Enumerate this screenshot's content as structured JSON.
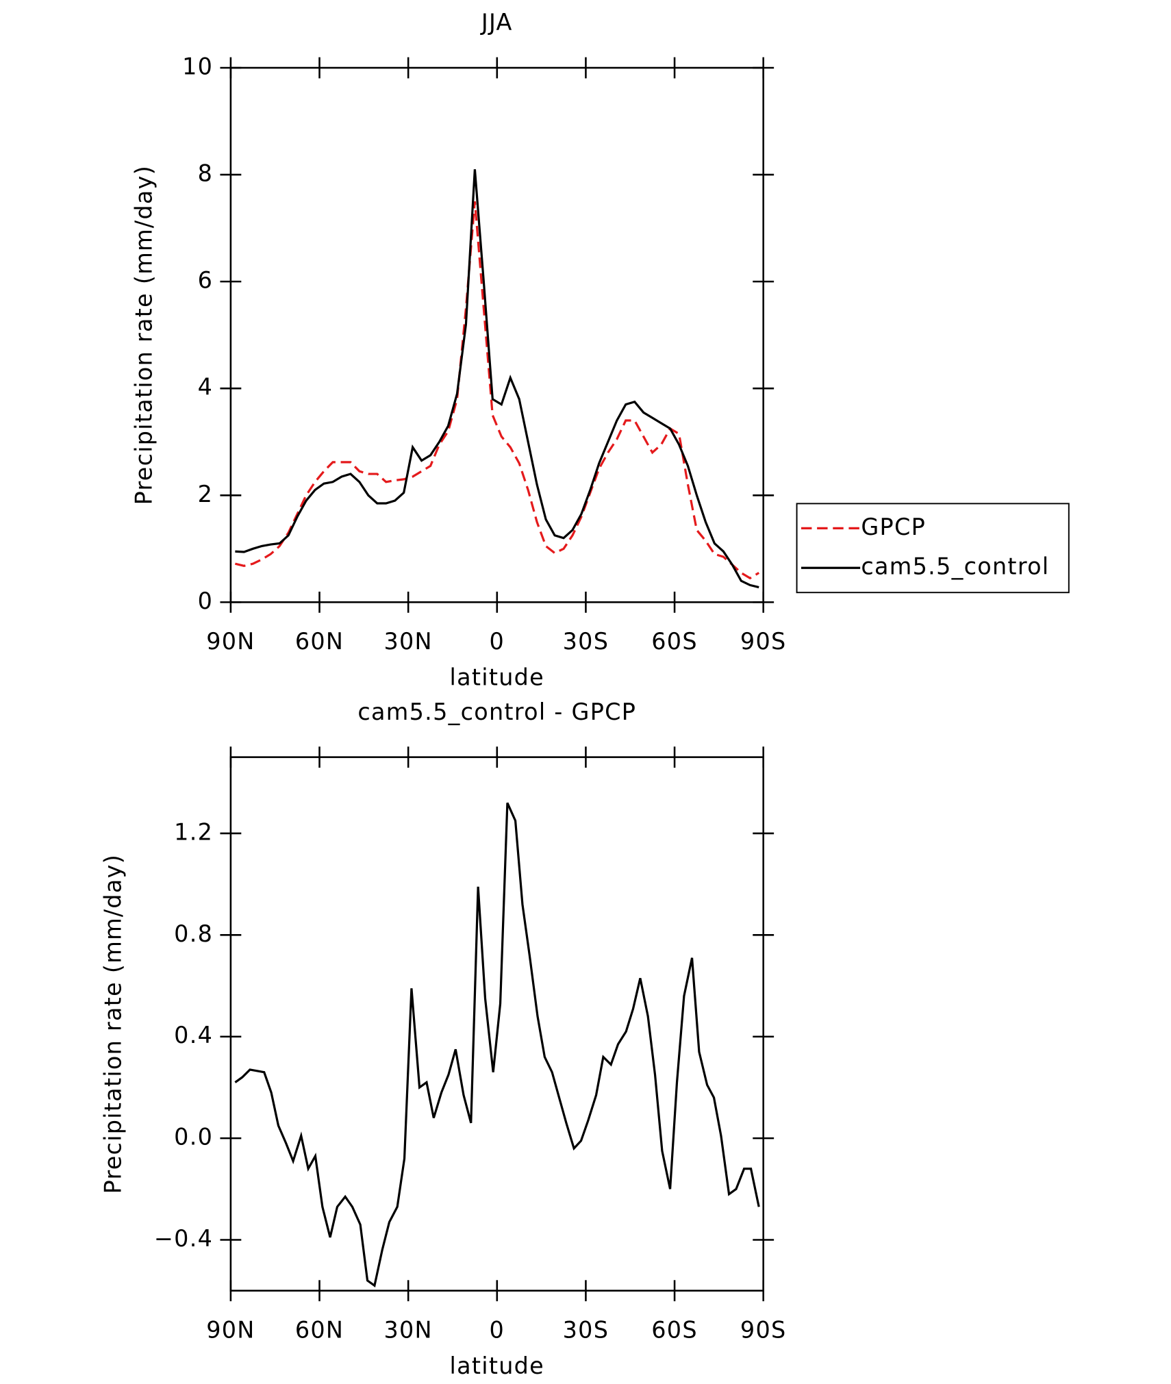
{
  "chart_data": [
    {
      "type": "line",
      "title": "JJA",
      "xlabel": "latitude",
      "ylabel": "Precipitation rate (mm/day)",
      "xlim": [
        90,
        -90
      ],
      "xticks": [
        {
          "value": 90,
          "label": "90N"
        },
        {
          "value": 60,
          "label": "60N"
        },
        {
          "value": 30,
          "label": "30N"
        },
        0,
        {
          "value": -30,
          "label": "30S"
        },
        {
          "value": -60,
          "label": "60S"
        },
        {
          "value": -90,
          "label": "90S"
        }
      ],
      "ylim": [
        0,
        10
      ],
      "yticks": [
        0,
        2,
        4,
        6,
        8,
        10
      ],
      "legend": "right",
      "x": [
        88.5,
        85.5,
        82.5,
        79.5,
        76.5,
        73.5,
        70.5,
        67.5,
        64.5,
        61.5,
        58.5,
        55.5,
        52.5,
        49.5,
        46.5,
        43.5,
        40.5,
        37.5,
        34.5,
        31.5,
        28.5,
        25.5,
        22.5,
        19.5,
        16.5,
        13.5,
        10.5,
        7.5,
        4.5,
        1.5,
        -1.5,
        -4.5,
        -7.5,
        -10.5,
        -13.5,
        -16.5,
        -19.5,
        -22.5,
        -25.5,
        -28.5,
        -31.5,
        -34.5,
        -37.5,
        -40.5,
        -43.5,
        -46.5,
        -49.5,
        -52.5,
        -55.5,
        -58.5,
        -61.5,
        -64.5,
        -67.5,
        -70.5,
        -73.5,
        -76.5,
        -79.5,
        -82.5,
        -85.5,
        -88.5
      ],
      "series": [
        {
          "name": "GPCP",
          "color": "#e41a1c",
          "line_style": "dashed",
          "values": [
            0.72,
            0.68,
            0.72,
            0.8,
            0.9,
            1.05,
            1.3,
            1.65,
            2.0,
            2.25,
            2.45,
            2.62,
            2.62,
            2.62,
            2.45,
            2.4,
            2.4,
            2.25,
            2.28,
            2.3,
            2.35,
            2.45,
            2.55,
            2.95,
            3.2,
            3.8,
            5.5,
            7.5,
            5.5,
            3.5,
            3.1,
            2.9,
            2.6,
            2.1,
            1.5,
            1.05,
            0.92,
            1.0,
            1.25,
            1.6,
            2.05,
            2.5,
            2.8,
            3.05,
            3.4,
            3.4,
            3.1,
            2.8,
            2.95,
            3.25,
            3.15,
            2.2,
            1.35,
            1.15,
            0.9,
            0.85,
            0.7,
            0.55,
            0.45,
            0.55
          ]
        },
        {
          "name": "cam5.5_control",
          "color": "#000000",
          "line_style": "solid",
          "values": [
            0.95,
            0.94,
            1.0,
            1.05,
            1.08,
            1.1,
            1.25,
            1.6,
            1.9,
            2.1,
            2.22,
            2.25,
            2.35,
            2.4,
            2.25,
            2.0,
            1.85,
            1.85,
            1.9,
            2.05,
            2.9,
            2.65,
            2.75,
            3.0,
            3.3,
            3.9,
            5.2,
            8.1,
            6.0,
            3.8,
            3.7,
            4.2,
            3.8,
            3.0,
            2.2,
            1.55,
            1.25,
            1.2,
            1.35,
            1.65,
            2.1,
            2.6,
            3.0,
            3.4,
            3.7,
            3.75,
            3.55,
            3.45,
            3.35,
            3.25,
            2.95,
            2.55,
            2.0,
            1.5,
            1.1,
            0.95,
            0.7,
            0.4,
            0.32,
            0.28
          ]
        }
      ]
    },
    {
      "type": "line",
      "title": "cam5.5_control - GPCP",
      "xlabel": "latitude",
      "ylabel": "Precipitation rate (mm/day)",
      "xlim": [
        90,
        -90
      ],
      "xticks": [
        {
          "value": 90,
          "label": "90N"
        },
        {
          "value": 60,
          "label": "60N"
        },
        {
          "value": 30,
          "label": "30N"
        },
        0,
        {
          "value": -30,
          "label": "30S"
        },
        {
          "value": -60,
          "label": "60S"
        },
        {
          "value": -90,
          "label": "90S"
        }
      ],
      "ylim": [
        -0.6,
        1.5
      ],
      "yticks": [
        {
          "value": -0.4,
          "label": "−0.4"
        },
        {
          "value": 0,
          "label": "0.0"
        },
        0.4,
        0.8,
        1.2
      ],
      "x": [
        88.5,
        86.1,
        83.5,
        78.7,
        76.3,
        73.9,
        71.3,
        68.9,
        66.2,
        63.8,
        61.4,
        59.0,
        56.4,
        54.0,
        51.3,
        48.9,
        46.2,
        43.8,
        41.4,
        38.8,
        36.4,
        33.7,
        31.3,
        28.9,
        26.2,
        23.8,
        21.4,
        18.8,
        16.4,
        14.0,
        11.3,
        8.8,
        6.4,
        4.0,
        1.3,
        -1.1,
        -3.5,
        -6.2,
        -8.6,
        -11.0,
        -13.7,
        -16.1,
        -18.6,
        -21.0,
        -23.4,
        -26.0,
        -28.4,
        -30.8,
        -33.5,
        -35.9,
        -38.5,
        -40.9,
        -43.6,
        -46.0,
        -48.4,
        -51.0,
        -53.4,
        -55.8,
        -58.5,
        -60.8,
        -63.2,
        -65.9,
        -68.3,
        -71.0,
        -73.3,
        -75.7,
        -78.4,
        -80.8,
        -83.5,
        -85.8,
        -88.5
      ],
      "series": [
        {
          "color": "#000000",
          "line_style": "solid",
          "values": [
            0.22,
            0.24,
            0.27,
            0.26,
            0.18,
            0.05,
            -0.02,
            -0.09,
            0.01,
            -0.12,
            -0.07,
            -0.27,
            -0.39,
            -0.27,
            -0.23,
            -0.27,
            -0.34,
            -0.56,
            -0.58,
            -0.44,
            -0.33,
            -0.27,
            -0.08,
            0.59,
            0.2,
            0.22,
            0.08,
            0.18,
            0.25,
            0.35,
            0.17,
            0.06,
            0.99,
            0.55,
            0.26,
            0.53,
            1.32,
            1.25,
            0.92,
            0.72,
            0.48,
            0.32,
            0.26,
            0.16,
            0.06,
            -0.04,
            -0.01,
            0.07,
            0.17,
            0.32,
            0.29,
            0.37,
            0.42,
            0.51,
            0.63,
            0.48,
            0.25,
            -0.05,
            -0.2,
            0.22,
            0.56,
            0.71,
            0.34,
            0.21,
            0.16,
            0.01,
            -0.22,
            -0.2,
            -0.12,
            -0.12,
            -0.27
          ]
        }
      ]
    }
  ]
}
